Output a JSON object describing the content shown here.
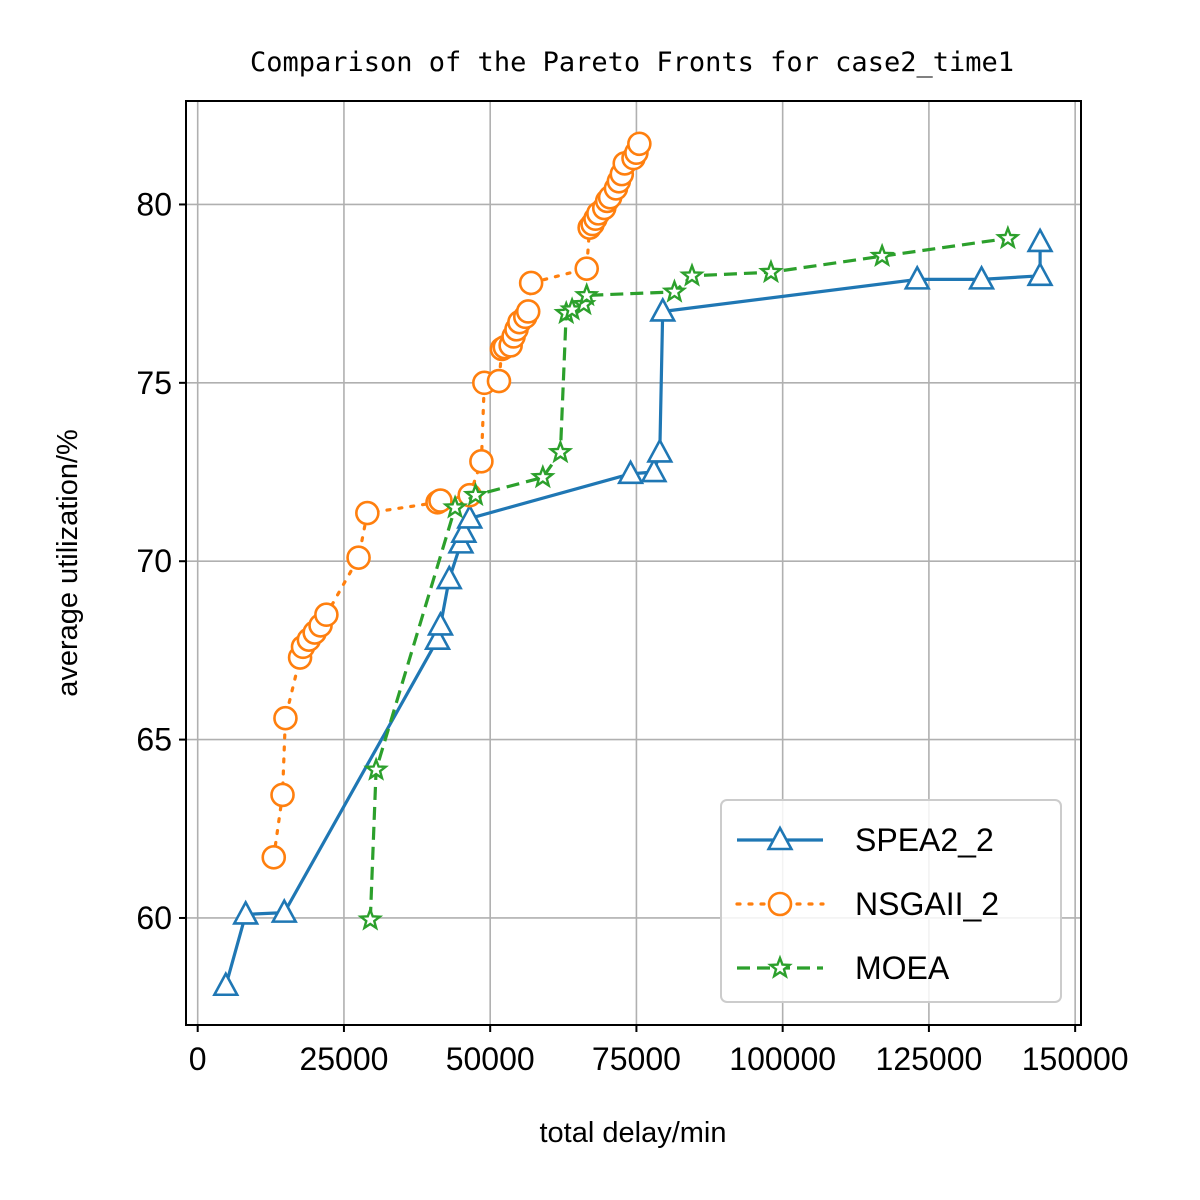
{
  "chart_data": {
    "type": "line",
    "title": "Comparison of the Pareto Fronts for case2_time1",
    "xlabel": "total delay/min",
    "ylabel": "average utilization/%",
    "xlim": [
      -2000,
      151000
    ],
    "ylim": [
      57.0,
      82.9
    ],
    "xticks": [
      0,
      25000,
      50000,
      75000,
      100000,
      125000,
      150000
    ],
    "xtick_labels": [
      "0",
      "25000",
      "50000",
      "75000",
      "100000",
      "125000",
      "150000"
    ],
    "yticks": [
      60,
      65,
      70,
      75,
      80
    ],
    "ytick_labels": [
      "60",
      "65",
      "70",
      "75",
      "80"
    ],
    "grid": true,
    "legend": "bottom-right",
    "series": [
      {
        "name": "SPEA2_2",
        "color": "#1f77b4",
        "linestyle": "solid",
        "marker": "triangle",
        "x": [
          4800,
          8200,
          14800,
          41000,
          41500,
          43000,
          45000,
          45500,
          46500,
          74000,
          78000,
          79000,
          79500,
          123000,
          134000,
          144000,
          144000
        ],
        "y": [
          58.1,
          60.1,
          60.15,
          67.8,
          68.2,
          69.5,
          70.5,
          70.8,
          71.2,
          72.45,
          72.5,
          73.05,
          77.0,
          77.9,
          77.9,
          78.0,
          78.95
        ]
      },
      {
        "name": "NSGAII_2",
        "color": "#ff7f0e",
        "linestyle": "dotted",
        "marker": "circle",
        "x": [
          13000,
          14500,
          15000,
          17500,
          18000,
          19000,
          20000,
          21000,
          22000,
          27500,
          29000,
          41000,
          41500,
          46500,
          48500,
          49000,
          51500,
          52000,
          52500,
          53500,
          54000,
          54500,
          55000,
          56000,
          56500,
          57000,
          66500,
          67000,
          67500,
          68000,
          68500,
          69500,
          70000,
          70500,
          71500,
          72000,
          72500,
          73000,
          74500,
          75000,
          75500
        ],
        "y": [
          61.7,
          63.45,
          65.6,
          67.3,
          67.6,
          67.8,
          68.0,
          68.2,
          68.5,
          70.1,
          71.35,
          71.65,
          71.7,
          71.85,
          72.8,
          75.0,
          75.05,
          75.95,
          76.0,
          76.05,
          76.3,
          76.5,
          76.7,
          76.85,
          77.0,
          77.8,
          78.2,
          79.35,
          79.45,
          79.6,
          79.75,
          79.9,
          80.1,
          80.2,
          80.45,
          80.65,
          80.85,
          81.15,
          81.3,
          81.45,
          81.7
        ]
      },
      {
        "name": "MOEA",
        "color": "#2ca02c",
        "linestyle": "dashed",
        "marker": "star",
        "x": [
          29500,
          30500,
          44000,
          47500,
          59000,
          62000,
          63000,
          64000,
          66000,
          66500,
          81500,
          84500,
          98000,
          117000,
          138500
        ],
        "y": [
          59.95,
          64.15,
          71.5,
          71.85,
          72.35,
          73.05,
          76.95,
          77.05,
          77.2,
          77.45,
          77.55,
          78.0,
          78.1,
          78.55,
          79.05
        ]
      }
    ]
  }
}
